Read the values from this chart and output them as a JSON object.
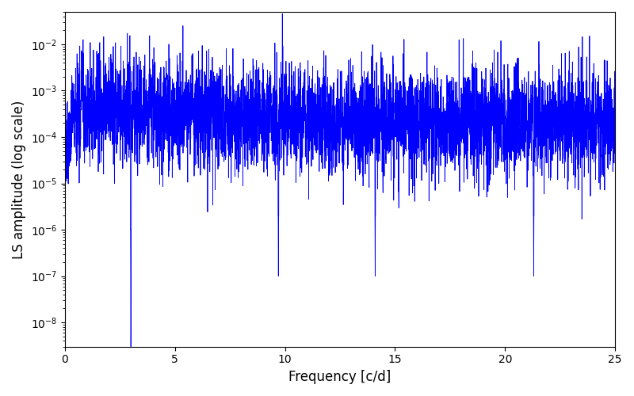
{
  "xlabel": "Frequency [c/d]",
  "ylabel": "LS amplitude (log scale)",
  "line_color": "#0000ff",
  "line_width": 0.6,
  "xlim": [
    0,
    25
  ],
  "ylim": [
    3e-09,
    0.05
  ],
  "freq_min": 0.0,
  "freq_max": 25.0,
  "n_points": 5000,
  "seed": 77,
  "figsize": [
    8.0,
    5.0
  ],
  "dpi": 100
}
